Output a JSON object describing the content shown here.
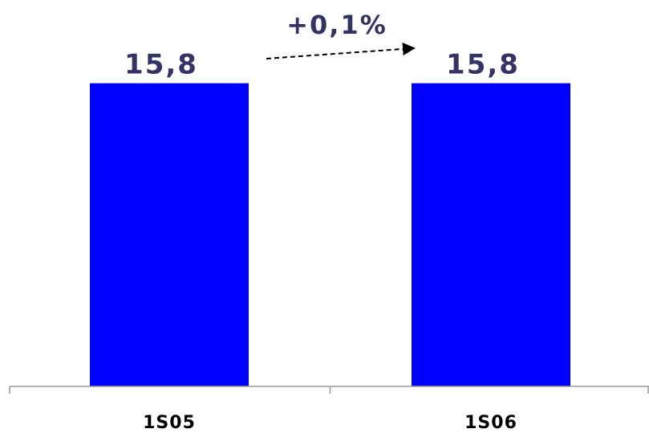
{
  "chart_data": {
    "type": "bar",
    "categories": [
      "1S05",
      "1S06"
    ],
    "values": [
      15.8,
      15.8
    ],
    "value_labels": [
      "15,8",
      "15,8"
    ],
    "ylim": [
      0,
      17.5
    ],
    "grid": false,
    "annotation": {
      "text": "+0,1%",
      "kind": "dashed-arrow",
      "from": "1S05",
      "to": "1S06"
    },
    "colors": {
      "bar": "#0000FF",
      "value_label": "#333366",
      "category_label": "#000000",
      "axis": "#999999",
      "annotation": "#000000"
    }
  }
}
